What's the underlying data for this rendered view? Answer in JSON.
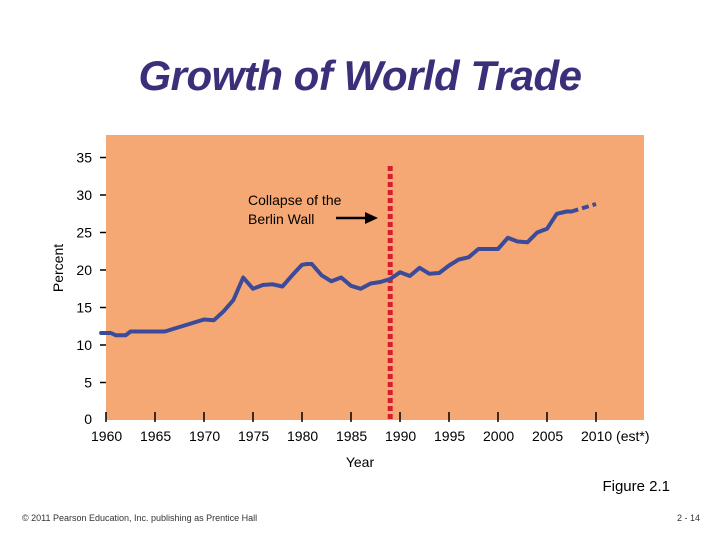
{
  "slide": {
    "title": "Growth of World Trade",
    "figure_label": "Figure 2.1",
    "footer_left": "© 2011 Pearson Education, Inc. publishing as Prentice Hall",
    "footer_right": "2 - 14"
  },
  "colors": {
    "title": "#3b2f7a",
    "plot_background": "#f5a873",
    "line": "#3c4a9a",
    "marker_line": "#d61f2e"
  },
  "chart_data": {
    "type": "line",
    "title": "",
    "xlabel": "Year",
    "ylabel": "Percent",
    "xlim": [
      1960,
      2010
    ],
    "ylim": [
      0,
      35
    ],
    "x_ticks": [
      1960,
      1965,
      1970,
      1975,
      1980,
      1985,
      1990,
      1995,
      2000,
      2005,
      2010
    ],
    "x_tick_labels": [
      "1960",
      "1965",
      "1970",
      "1975",
      "1980",
      "1985",
      "1990",
      "1995",
      "2000",
      "2005",
      "2010 (est*)"
    ],
    "y_ticks": [
      0,
      5,
      10,
      15,
      20,
      25,
      30,
      35
    ],
    "grid": false,
    "legend": "none",
    "series": [
      {
        "style": "solid",
        "x": [
          1959.5,
          1960.5,
          1961,
          1962,
          1962.5,
          1963,
          1964,
          1965,
          1966,
          1967,
          1968,
          1969,
          1970,
          1971,
          1972,
          1973,
          1974,
          1975,
          1976,
          1977,
          1978,
          1979,
          1980,
          1980.5,
          1981,
          1982,
          1983,
          1984,
          1985,
          1986,
          1987,
          1988,
          1989,
          1990,
          1991,
          1992,
          1993,
          1994,
          1995,
          1996,
          1997,
          1998,
          1999,
          2000,
          2001,
          2002,
          2003,
          2004,
          2005,
          2006,
          2007,
          2007.5
        ],
        "y": [
          11.6,
          11.6,
          11.3,
          11.3,
          11.8,
          11.8,
          11.8,
          11.8,
          11.8,
          12.2,
          12.6,
          13.0,
          13.4,
          13.3,
          14.5,
          16.0,
          19.0,
          17.5,
          18.0,
          18.1,
          17.8,
          19.3,
          20.7,
          20.8,
          20.8,
          19.3,
          18.5,
          19.0,
          17.9,
          17.5,
          18.2,
          18.4,
          18.8,
          19.7,
          19.2,
          20.3,
          19.5,
          19.6,
          20.6,
          21.4,
          21.7,
          22.8,
          22.8,
          22.8,
          24.3,
          23.8,
          23.7,
          25.0,
          25.5,
          27.5,
          27.8,
          27.8
        ]
      },
      {
        "style": "dashed",
        "x": [
          2007.5,
          2010
        ],
        "y": [
          27.8,
          28.8
        ]
      }
    ],
    "vertical_marker": {
      "x": 1989,
      "style": "dotted"
    },
    "annotations": [
      {
        "text_lines": [
          "Collapse of the",
          "Berlin Wall"
        ],
        "arrow_to_x": 1989
      }
    ]
  }
}
